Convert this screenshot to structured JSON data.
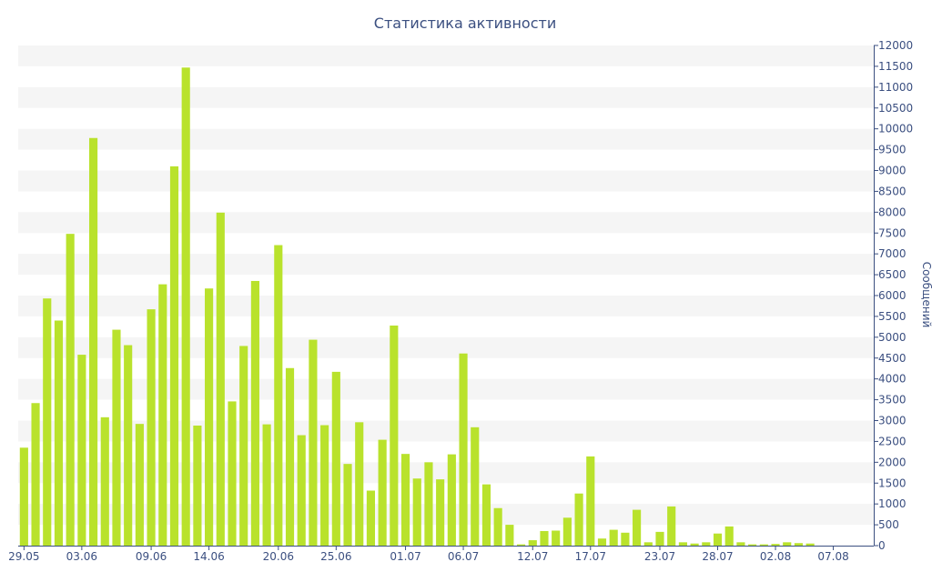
{
  "colors": {
    "bar": "#b9e22c",
    "band": "#f5f5f5",
    "axis": "#3b4f80",
    "text": "#3b4f80"
  },
  "chart_data": {
    "type": "bar",
    "title": "Статистика активности",
    "ylabel": "Сообщений",
    "xlabel": "",
    "ylim": [
      0,
      12000
    ],
    "y_ticks": [
      0,
      500,
      1000,
      1500,
      2000,
      2500,
      3000,
      3500,
      4000,
      4500,
      5000,
      5500,
      6000,
      6500,
      7000,
      7500,
      8000,
      8500,
      9000,
      9500,
      10000,
      10500,
      11000,
      11500,
      12000
    ],
    "y_axis_side": "right",
    "categories": [
      "29.05",
      "30.05",
      "31.05",
      "01.06",
      "02.06",
      "03.06",
      "04.06",
      "05.06",
      "06.06",
      "07.06",
      "08.06",
      "09.06",
      "10.06",
      "11.06",
      "12.06",
      "13.06",
      "14.06",
      "15.06",
      "16.06",
      "17.06",
      "18.06",
      "19.06",
      "20.06",
      "21.06",
      "22.06",
      "23.06",
      "24.06",
      "25.06",
      "26.06",
      "27.06",
      "28.06",
      "29.06",
      "30.06",
      "01.07",
      "02.07",
      "03.07",
      "04.07",
      "05.07",
      "06.07",
      "07.07",
      "08.07",
      "09.07",
      "10.07",
      "11.07",
      "12.07",
      "13.07",
      "14.07",
      "15.07",
      "16.07",
      "17.07",
      "18.07",
      "19.07",
      "20.07",
      "21.07",
      "22.07",
      "23.07",
      "24.07",
      "25.07",
      "26.07",
      "27.07",
      "28.07",
      "29.07",
      "30.07",
      "31.07",
      "01.08",
      "02.08",
      "03.08",
      "04.08",
      "05.08",
      "06.08",
      "07.08",
      "08.08",
      "09.08",
      "10.08"
    ],
    "x_tick_labels": [
      "29.05",
      "03.06",
      "09.06",
      "14.06",
      "20.06",
      "25.06",
      "01.07",
      "06.07",
      "12.07",
      "17.07",
      "23.07",
      "28.07",
      "02.08",
      "07.08"
    ],
    "values": [
      2350,
      3420,
      5930,
      5400,
      7480,
      4580,
      9780,
      3080,
      5180,
      4810,
      2920,
      5670,
      6270,
      9100,
      11470,
      2880,
      6170,
      7990,
      3460,
      4790,
      6350,
      2910,
      7210,
      4260,
      2650,
      4940,
      2890,
      4170,
      1960,
      2960,
      1320,
      2540,
      5280,
      2200,
      1610,
      2000,
      1590,
      2190,
      4610,
      2840,
      1470,
      900,
      500,
      30,
      130,
      350,
      360,
      670,
      1250,
      2140,
      170,
      380,
      310,
      860,
      80,
      330,
      940,
      80,
      50,
      80,
      290,
      460,
      80,
      30,
      30,
      40,
      80,
      60,
      50,
      0,
      0,
      0,
      0,
      0
    ]
  }
}
